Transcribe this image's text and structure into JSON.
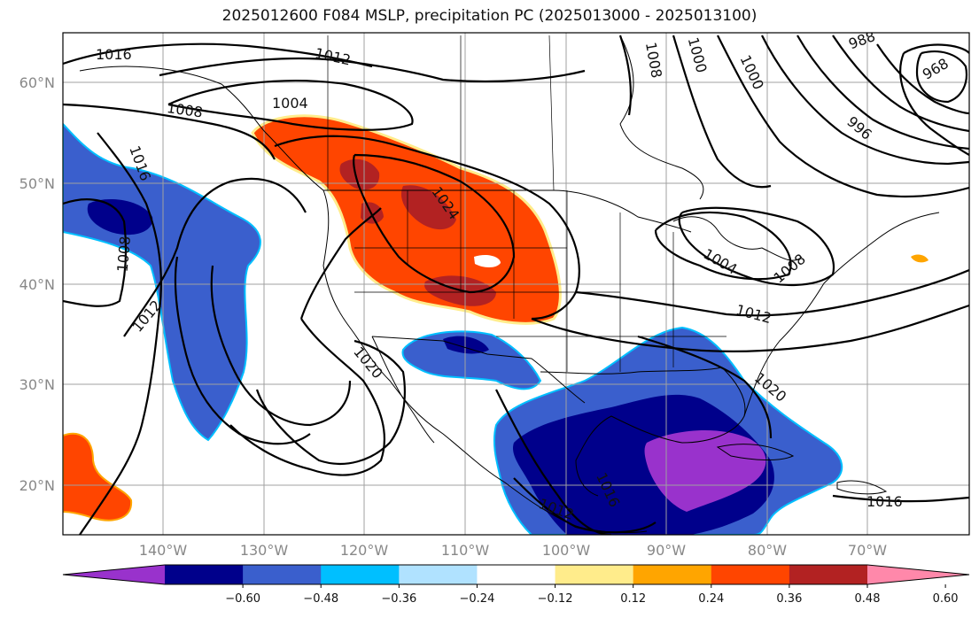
{
  "title": "2025012600 F084 MSLP, precipitation PC (2025013000 - 2025013100)",
  "lat_labels": [
    "60°N",
    "50°N",
    "40°N",
    "30°N",
    "20°N"
  ],
  "lon_labels": [
    "140°W",
    "130°W",
    "120°W",
    "110°W",
    "100°W",
    "90°W",
    "80°W",
    "70°W"
  ],
  "colorbar": {
    "tick_labels": [
      "−0.60",
      "−0.48",
      "−0.36",
      "−0.24",
      "−0.12",
      "0.12",
      "0.24",
      "0.36",
      "0.48",
      "0.60"
    ],
    "colors": [
      "#9932cc",
      "#00008b",
      "#3a5fcd",
      "#00bfff",
      "#b0e2ff",
      "#ffffff",
      "#ffec8b",
      "#ffa500",
      "#ff4500",
      "#b22222",
      "#ff88aa"
    ]
  },
  "isobar_labels": {
    "l1016_nw": "1016",
    "l1012_n": "1012",
    "l1004_n": "1004",
    "l1008_nw": "1008",
    "l1016_w": "1016",
    "l1008_w": "1008",
    "l1012_w": "1012",
    "l1020_c": "1020",
    "l1024": "1024",
    "l1008_top": "1008",
    "l1000_top": "1000",
    "l1000_ne": "1000",
    "l996": "996",
    "l988": "988",
    "l968": "968",
    "l1004_lakes": "1004",
    "l1008_lakes": "1008",
    "l1012_e": "1012",
    "l1020_gulf": "1020",
    "l1016_mex": "1016",
    "l1016_carib": "1016",
    "l1012_s": "1012"
  }
}
